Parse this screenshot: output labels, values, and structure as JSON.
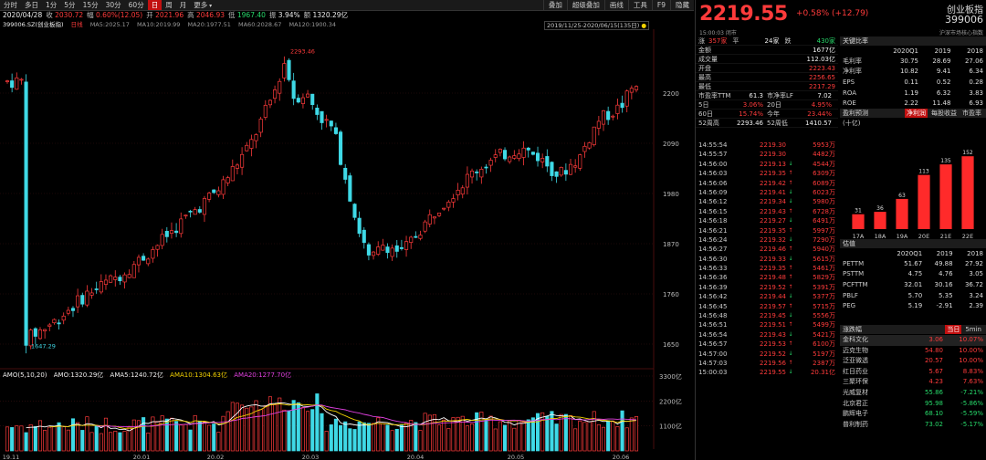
{
  "toolbar": {
    "periods": [
      "分时",
      "多日",
      "1分",
      "5分",
      "15分",
      "30分",
      "60分",
      "日",
      "周",
      "月",
      "更多"
    ],
    "active_period": "日",
    "tools": [
      "叠加",
      "超级叠加",
      "画线",
      "工具",
      "F9",
      "隐藏"
    ]
  },
  "infobar": {
    "date": "2020/04/28",
    "open_label": "收",
    "close_val": "2030.72",
    "amp_label": "幅",
    "amp_val": "0.60%(12.05)",
    "kai_label": "开",
    "kai_val": "2021.96",
    "high_label": "高",
    "high_val": "2046.93",
    "low_label": "低",
    "low_val": "1967.40",
    "zf_label": "振",
    "zf_val": "3.94%",
    "amt_label": "额",
    "amt_val": "1320.29亿"
  },
  "mabar": {
    "code": "399006.SZ(创业板指)",
    "fq": "日线",
    "ma5": "MA5:2025.17",
    "ma10": "MA10:2019.99",
    "ma20": "MA20:1977.51",
    "ma60": "MA60:2028.67",
    "ma120": "MA120:1900.34"
  },
  "range": "2019/11/25-2020/06/15(135日)",
  "price_axis": [
    "2200",
    "2090",
    "1980",
    "1870",
    "1760",
    "1650"
  ],
  "vol_axis": [
    "3300亿",
    "2200亿",
    "1100亿"
  ],
  "date_axis": [
    "19.11",
    "20.01",
    "20.02",
    "20.03",
    "20.04",
    "20.05",
    "20.06"
  ],
  "high_mark": "2293.46",
  "low_mark": "1647.29",
  "vol_bar": {
    "title": "AMO(5,10,20)",
    "amo": "AMO:1320.29亿",
    "ama5": "AMA5:1240.72亿",
    "ama10": "AMA10:1304.63亿",
    "ama20": "AMA20:1277.70亿"
  },
  "quote": {
    "price": "2219.55",
    "change": "+0.58% (+12.79)",
    "name": "创业板指",
    "code": "399006",
    "time": "15:00:03 闭市",
    "tag": "沪深市场核心指数"
  },
  "quote_list": [
    {
      "k": "金额",
      "v": "1677亿",
      "c": "white"
    },
    {
      "k": "成交量",
      "v": "112.03亿",
      "c": "white"
    },
    {
      "k": "开盘",
      "v": "2223.43",
      "c": "red"
    },
    {
      "k": "最高",
      "v": "2256.65",
      "c": "red"
    },
    {
      "k": "最低",
      "v": "2217.29",
      "c": "red"
    }
  ],
  "adv": {
    "up_label": "涨",
    "up": "357家",
    "flat_label": "平",
    "flat": "24家",
    "down_label": "跌",
    "down": "430家"
  },
  "quote_split": [
    {
      "k1": "市盈率TTM",
      "v1": "61.3",
      "c1": "white",
      "k2": "市净率LF",
      "v2": "7.02",
      "c2": "white"
    },
    {
      "k1": "5日",
      "v1": "3.06%",
      "c1": "red",
      "k2": "20日",
      "v2": "4.95%",
      "c2": "red"
    },
    {
      "k1": "60日",
      "v1": "15.74%",
      "c1": "red",
      "k2": "今年",
      "v2": "23.44%",
      "c2": "red"
    },
    {
      "k1": "52周高",
      "v1": "2293.46",
      "c1": "white",
      "k2": "52周低",
      "v2": "1410.57",
      "c2": "white"
    }
  ],
  "ticks": [
    {
      "t": "14:55:54",
      "p": "2219.30",
      "a": "",
      "v": "5953万",
      "c": "red"
    },
    {
      "t": "14:55:57",
      "p": "2219.30",
      "a": "",
      "v": "4482万",
      "c": "red"
    },
    {
      "t": "14:56:00",
      "p": "2219.13",
      "a": "↓",
      "v": "4544万",
      "c": "red"
    },
    {
      "t": "14:56:03",
      "p": "2219.35",
      "a": "↑",
      "v": "6309万",
      "c": "red"
    },
    {
      "t": "14:56:06",
      "p": "2219.42",
      "a": "↑",
      "v": "6089万",
      "c": "red"
    },
    {
      "t": "14:56:09",
      "p": "2219.41",
      "a": "↓",
      "v": "6023万",
      "c": "red"
    },
    {
      "t": "14:56:12",
      "p": "2219.34",
      "a": "↓",
      "v": "5980万",
      "c": "red"
    },
    {
      "t": "14:56:15",
      "p": "2219.43",
      "a": "↑",
      "v": "6728万",
      "c": "red"
    },
    {
      "t": "14:56:18",
      "p": "2219.27",
      "a": "↓",
      "v": "6491万",
      "c": "red"
    },
    {
      "t": "14:56:21",
      "p": "2219.35",
      "a": "↑",
      "v": "5997万",
      "c": "red"
    },
    {
      "t": "14:56:24",
      "p": "2219.32",
      "a": "↓",
      "v": "7290万",
      "c": "red"
    },
    {
      "t": "14:56:27",
      "p": "2219.46",
      "a": "↑",
      "v": "5940万",
      "c": "red"
    },
    {
      "t": "14:56:30",
      "p": "2219.33",
      "a": "↓",
      "v": "5615万",
      "c": "red"
    },
    {
      "t": "14:56:33",
      "p": "2219.35",
      "a": "↑",
      "v": "5461万",
      "c": "red"
    },
    {
      "t": "14:56:36",
      "p": "2219.48",
      "a": "↑",
      "v": "5829万",
      "c": "red"
    },
    {
      "t": "14:56:39",
      "p": "2219.52",
      "a": "↑",
      "v": "5391万",
      "c": "red"
    },
    {
      "t": "14:56:42",
      "p": "2219.44",
      "a": "↓",
      "v": "5377万",
      "c": "red"
    },
    {
      "t": "14:56:45",
      "p": "2219.57",
      "a": "↑",
      "v": "5715万",
      "c": "red"
    },
    {
      "t": "14:56:48",
      "p": "2219.45",
      "a": "↓",
      "v": "5556万",
      "c": "red"
    },
    {
      "t": "14:56:51",
      "p": "2219.51",
      "a": "↑",
      "v": "5499万",
      "c": "red"
    },
    {
      "t": "14:56:54",
      "p": "2219.43",
      "a": "↓",
      "v": "5421万",
      "c": "red"
    },
    {
      "t": "14:56:57",
      "p": "2219.53",
      "a": "↑",
      "v": "6100万",
      "c": "red"
    },
    {
      "t": "14:57:00",
      "p": "2219.52",
      "a": "↓",
      "v": "5197万",
      "c": "red"
    },
    {
      "t": "14:57:03",
      "p": "2219.56",
      "a": "↑",
      "v": "2387万",
      "c": "red"
    },
    {
      "t": "15:00:03",
      "p": "2219.55",
      "a": "↓",
      "v": "20.31亿",
      "c": "red"
    }
  ],
  "ratios": {
    "title": "关键比率",
    "cols": [
      "2020Q1",
      "2019",
      "2018"
    ],
    "rows": [
      {
        "l": "毛利率",
        "v": [
          "30.75",
          "28.69",
          "27.06"
        ]
      },
      {
        "l": "净利率",
        "v": [
          "10.82",
          "9.41",
          "6.34"
        ]
      },
      {
        "l": "EPS",
        "v": [
          "0.11",
          "0.52",
          "0.28"
        ]
      },
      {
        "l": "ROA",
        "v": [
          "1.19",
          "6.32",
          "3.83"
        ]
      },
      {
        "l": "ROE",
        "v": [
          "2.22",
          "11.48",
          "6.93"
        ]
      }
    ]
  },
  "forecast": {
    "title": "盈利预测",
    "tabs": [
      "净利润",
      "每股收益",
      "市盈率"
    ],
    "active_tab": "净利润",
    "unit": "(十亿)",
    "bar_color": "#ff2a2a"
  },
  "chart_data": {
    "type": "bar",
    "categories": [
      "17A",
      "18A",
      "19A",
      "20E",
      "21E",
      "22E"
    ],
    "values": [
      31,
      36,
      63,
      113,
      135,
      152
    ],
    "ylim": [
      0,
      160
    ]
  },
  "valuation": {
    "title": "估值",
    "cols": [
      "2020Q1",
      "2019",
      "2018"
    ],
    "rows": [
      {
        "l": "PETTM",
        "v": [
          "51.67",
          "49.88",
          "27.92"
        ]
      },
      {
        "l": "PSTTM",
        "v": [
          "4.75",
          "4.76",
          "3.05"
        ]
      },
      {
        "l": "PCFTTM",
        "v": [
          "32.01",
          "30.16",
          "36.72"
        ]
      },
      {
        "l": "PBLF",
        "v": [
          "5.70",
          "5.35",
          "3.24"
        ]
      },
      {
        "l": "PEG",
        "v": [
          "5.19",
          "-2.91",
          "2.39"
        ]
      }
    ]
  },
  "movers": {
    "title": "涨跌幅",
    "tabs": [
      "当日",
      "5min"
    ],
    "active_tab": "当日",
    "rows": [
      {
        "n": "金科文化",
        "p": "3.06",
        "c": "10.07%",
        "cls": "red",
        "hl": true
      },
      {
        "n": "迈克生物",
        "p": "54.80",
        "c": "10.00%",
        "cls": "red"
      },
      {
        "n": "泛亚微透",
        "p": "20.57",
        "c": "10.00%",
        "cls": "red"
      },
      {
        "n": "红日药业",
        "p": "5.67",
        "c": "8.83%",
        "cls": "red"
      },
      {
        "n": "三聚环保",
        "p": "4.23",
        "c": "7.63%",
        "cls": "red"
      },
      {
        "n": "光威复材",
        "p": "55.86",
        "c": "-7.21%",
        "cls": "green"
      },
      {
        "n": "北京君正",
        "p": "95.98",
        "c": "-5.86%",
        "cls": "green"
      },
      {
        "n": "鹏辉电子",
        "p": "68.10",
        "c": "-5.59%",
        "cls": "green"
      },
      {
        "n": "普利制药",
        "p": "73.02",
        "c": "-5.17%",
        "cls": "green"
      }
    ]
  },
  "colors": {
    "up": "#ff3b3b",
    "down": "#3fd9e6",
    "grid": "#3a1010"
  }
}
